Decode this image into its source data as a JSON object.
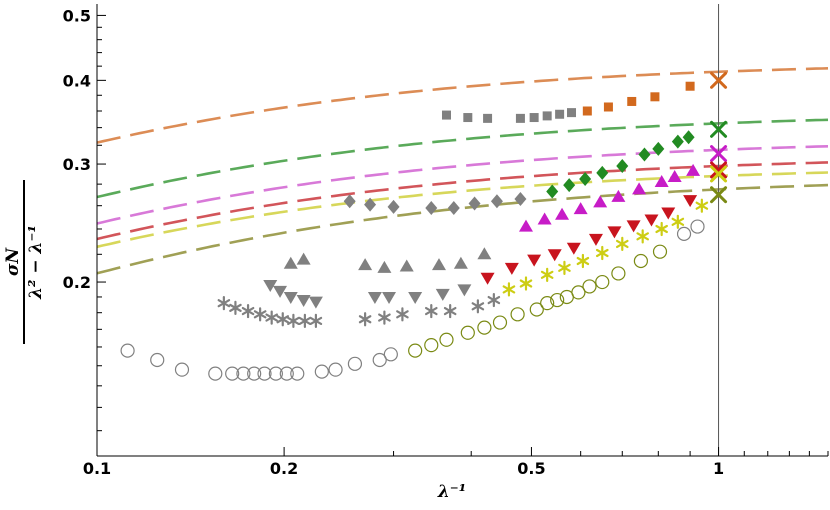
{
  "chart_data": {
    "type": "scatter",
    "xlabel": "λ⁻¹",
    "ylabel_numerator": "σN",
    "ylabel_denominator": "λ² − λ⁻¹",
    "x_scale": "log",
    "y_scale": "log",
    "xlim": [
      0.1,
      1.5
    ],
    "ylim": [
      0.11,
      0.52
    ],
    "x_ticks": [
      {
        "value": 0.1,
        "label": "0.1"
      },
      {
        "value": 0.2,
        "label": "0.2"
      },
      {
        "value": 0.5,
        "label": "0.5"
      },
      {
        "value": 1,
        "label": "1"
      }
    ],
    "y_ticks": [
      {
        "value": 0.2,
        "label": "0.2"
      },
      {
        "value": 0.3,
        "label": "0.3"
      },
      {
        "value": 0.4,
        "label": "0.4"
      },
      {
        "value": 0.5,
        "label": "0.5"
      }
    ],
    "reference_line_x": 1,
    "series": [
      {
        "marker": "square",
        "active_color": "#d2691e",
        "inactive_color": "#808080",
        "fit_color": "#dc8c55",
        "fit": {
          "a": 0.412,
          "b": 0.075
        },
        "points": [
          {
            "x": 0.365,
            "y": 0.355,
            "a": false
          },
          {
            "x": 0.395,
            "y": 0.352,
            "a": false
          },
          {
            "x": 0.425,
            "y": 0.351,
            "a": false
          },
          {
            "x": 0.48,
            "y": 0.351,
            "a": false
          },
          {
            "x": 0.505,
            "y": 0.352,
            "a": false
          },
          {
            "x": 0.53,
            "y": 0.354,
            "a": false
          },
          {
            "x": 0.555,
            "y": 0.356,
            "a": false
          },
          {
            "x": 0.58,
            "y": 0.358,
            "a": false
          },
          {
            "x": 0.615,
            "y": 0.36,
            "a": true
          },
          {
            "x": 0.665,
            "y": 0.365,
            "a": true
          },
          {
            "x": 0.725,
            "y": 0.372,
            "a": true
          },
          {
            "x": 0.79,
            "y": 0.378,
            "a": true
          },
          {
            "x": 0.9,
            "y": 0.392,
            "a": true
          }
        ],
        "endpoint": {
          "x": 1,
          "y": 0.4
        }
      },
      {
        "marker": "diamond",
        "active_color": "#228b22",
        "inactive_color": "#808080",
        "fit_color": "#5aaa5a",
        "fit": {
          "a": 0.345,
          "b": 0.079
        },
        "points": [
          {
            "x": 0.255,
            "y": 0.264,
            "a": false
          },
          {
            "x": 0.275,
            "y": 0.261,
            "a": false
          },
          {
            "x": 0.3,
            "y": 0.259,
            "a": false
          },
          {
            "x": 0.345,
            "y": 0.258,
            "a": false
          },
          {
            "x": 0.375,
            "y": 0.258,
            "a": false
          },
          {
            "x": 0.405,
            "y": 0.262,
            "a": false
          },
          {
            "x": 0.44,
            "y": 0.264,
            "a": false
          },
          {
            "x": 0.48,
            "y": 0.266,
            "a": false
          },
          {
            "x": 0.54,
            "y": 0.273,
            "a": true
          },
          {
            "x": 0.575,
            "y": 0.279,
            "a": true
          },
          {
            "x": 0.61,
            "y": 0.285,
            "a": true
          },
          {
            "x": 0.65,
            "y": 0.291,
            "a": true
          },
          {
            "x": 0.7,
            "y": 0.298,
            "a": true
          },
          {
            "x": 0.76,
            "y": 0.31,
            "a": true
          },
          {
            "x": 0.8,
            "y": 0.316,
            "a": true
          },
          {
            "x": 0.86,
            "y": 0.324,
            "a": true
          },
          {
            "x": 0.895,
            "y": 0.329,
            "a": true
          }
        ],
        "endpoint": {
          "x": 1,
          "y": 0.338
        }
      },
      {
        "marker": "triangle-up",
        "active_color": "#c71cc7",
        "inactive_color": "#808080",
        "fit_color": "#d879d8",
        "fit": {
          "a": 0.315,
          "b": 0.079
        },
        "points": [
          {
            "x": 0.205,
            "y": 0.213,
            "a": false
          },
          {
            "x": 0.215,
            "y": 0.216,
            "a": false
          },
          {
            "x": 0.27,
            "y": 0.212,
            "a": false
          },
          {
            "x": 0.29,
            "y": 0.21,
            "a": false
          },
          {
            "x": 0.315,
            "y": 0.211,
            "a": false
          },
          {
            "x": 0.355,
            "y": 0.212,
            "a": false
          },
          {
            "x": 0.385,
            "y": 0.213,
            "a": false
          },
          {
            "x": 0.42,
            "y": 0.22,
            "a": false
          },
          {
            "x": 0.49,
            "y": 0.242,
            "a": true
          },
          {
            "x": 0.525,
            "y": 0.248,
            "a": true
          },
          {
            "x": 0.56,
            "y": 0.252,
            "a": true
          },
          {
            "x": 0.6,
            "y": 0.257,
            "a": true
          },
          {
            "x": 0.645,
            "y": 0.263,
            "a": true
          },
          {
            "x": 0.69,
            "y": 0.268,
            "a": true
          },
          {
            "x": 0.745,
            "y": 0.275,
            "a": true
          },
          {
            "x": 0.81,
            "y": 0.282,
            "a": true
          },
          {
            "x": 0.85,
            "y": 0.287,
            "a": true
          },
          {
            "x": 0.91,
            "y": 0.293,
            "a": true
          }
        ],
        "endpoint": {
          "x": 1,
          "y": 0.311
        }
      },
      {
        "marker": "triangle-down",
        "active_color": "#c8141e",
        "inactive_color": "#808080",
        "fit_color": "#d2555a",
        "fit": {
          "a": 0.298,
          "b": 0.078
        },
        "points": [
          {
            "x": 0.19,
            "y": 0.198,
            "a": false
          },
          {
            "x": 0.197,
            "y": 0.194,
            "a": false
          },
          {
            "x": 0.205,
            "y": 0.19,
            "a": false
          },
          {
            "x": 0.215,
            "y": 0.188,
            "a": false
          },
          {
            "x": 0.225,
            "y": 0.187,
            "a": false
          },
          {
            "x": 0.28,
            "y": 0.19,
            "a": false
          },
          {
            "x": 0.295,
            "y": 0.19,
            "a": false
          },
          {
            "x": 0.325,
            "y": 0.19,
            "a": false
          },
          {
            "x": 0.36,
            "y": 0.192,
            "a": false
          },
          {
            "x": 0.39,
            "y": 0.195,
            "a": false
          },
          {
            "x": 0.425,
            "y": 0.203,
            "a": true
          },
          {
            "x": 0.465,
            "y": 0.21,
            "a": true
          },
          {
            "x": 0.505,
            "y": 0.216,
            "a": true
          },
          {
            "x": 0.545,
            "y": 0.22,
            "a": true
          },
          {
            "x": 0.585,
            "y": 0.225,
            "a": true
          },
          {
            "x": 0.635,
            "y": 0.232,
            "a": true
          },
          {
            "x": 0.68,
            "y": 0.238,
            "a": true
          },
          {
            "x": 0.73,
            "y": 0.243,
            "a": true
          },
          {
            "x": 0.78,
            "y": 0.248,
            "a": true
          },
          {
            "x": 0.83,
            "y": 0.254,
            "a": true
          },
          {
            "x": 0.9,
            "y": 0.265,
            "a": true
          }
        ],
        "endpoint": {
          "x": 1,
          "y": 0.294
        }
      },
      {
        "marker": "star",
        "active_color": "#cdcd14",
        "inactive_color": "#808080",
        "fit_color": "#d7d75a",
        "fit": {
          "a": 0.288,
          "b": 0.075
        },
        "points": [
          {
            "x": 0.16,
            "y": 0.186,
            "a": false
          },
          {
            "x": 0.167,
            "y": 0.183,
            "a": false
          },
          {
            "x": 0.175,
            "y": 0.181,
            "a": false
          },
          {
            "x": 0.183,
            "y": 0.179,
            "a": false
          },
          {
            "x": 0.191,
            "y": 0.177,
            "a": false
          },
          {
            "x": 0.199,
            "y": 0.176,
            "a": false
          },
          {
            "x": 0.207,
            "y": 0.175,
            "a": false
          },
          {
            "x": 0.216,
            "y": 0.175,
            "a": false
          },
          {
            "x": 0.225,
            "y": 0.175,
            "a": false
          },
          {
            "x": 0.27,
            "y": 0.176,
            "a": false
          },
          {
            "x": 0.29,
            "y": 0.177,
            "a": false
          },
          {
            "x": 0.31,
            "y": 0.179,
            "a": false
          },
          {
            "x": 0.345,
            "y": 0.181,
            "a": false
          },
          {
            "x": 0.37,
            "y": 0.181,
            "a": false
          },
          {
            "x": 0.41,
            "y": 0.184,
            "a": false
          },
          {
            "x": 0.435,
            "y": 0.188,
            "a": false
          },
          {
            "x": 0.46,
            "y": 0.195,
            "a": true
          },
          {
            "x": 0.49,
            "y": 0.199,
            "a": true
          },
          {
            "x": 0.53,
            "y": 0.205,
            "a": true
          },
          {
            "x": 0.565,
            "y": 0.21,
            "a": true
          },
          {
            "x": 0.605,
            "y": 0.215,
            "a": true
          },
          {
            "x": 0.65,
            "y": 0.221,
            "a": true
          },
          {
            "x": 0.7,
            "y": 0.228,
            "a": true
          },
          {
            "x": 0.755,
            "y": 0.234,
            "a": true
          },
          {
            "x": 0.81,
            "y": 0.24,
            "a": true
          },
          {
            "x": 0.86,
            "y": 0.246,
            "a": true
          },
          {
            "x": 0.94,
            "y": 0.26,
            "a": true
          }
        ],
        "endpoint": {
          "x": 1,
          "y": 0.29
        }
      },
      {
        "marker": "circle",
        "active_color": "#7a8a14",
        "inactive_color": "#808080",
        "fit_color": "#a0a055",
        "fit": {
          "a": 0.275,
          "b": 0.095
        },
        "points": [
          {
            "x": 0.112,
            "y": 0.158,
            "a": false
          },
          {
            "x": 0.125,
            "y": 0.153,
            "a": false
          },
          {
            "x": 0.137,
            "y": 0.148,
            "a": false
          },
          {
            "x": 0.155,
            "y": 0.146,
            "a": false
          },
          {
            "x": 0.165,
            "y": 0.146,
            "a": false
          },
          {
            "x": 0.172,
            "y": 0.146,
            "a": false
          },
          {
            "x": 0.179,
            "y": 0.146,
            "a": false
          },
          {
            "x": 0.186,
            "y": 0.146,
            "a": false
          },
          {
            "x": 0.194,
            "y": 0.146,
            "a": false
          },
          {
            "x": 0.202,
            "y": 0.146,
            "a": false
          },
          {
            "x": 0.21,
            "y": 0.146,
            "a": false
          },
          {
            "x": 0.23,
            "y": 0.147,
            "a": false
          },
          {
            "x": 0.242,
            "y": 0.148,
            "a": false
          },
          {
            "x": 0.26,
            "y": 0.151,
            "a": false
          },
          {
            "x": 0.285,
            "y": 0.153,
            "a": false
          },
          {
            "x": 0.297,
            "y": 0.156,
            "a": false
          },
          {
            "x": 0.325,
            "y": 0.158,
            "a": true
          },
          {
            "x": 0.345,
            "y": 0.161,
            "a": true
          },
          {
            "x": 0.365,
            "y": 0.164,
            "a": true
          },
          {
            "x": 0.395,
            "y": 0.168,
            "a": true
          },
          {
            "x": 0.42,
            "y": 0.171,
            "a": true
          },
          {
            "x": 0.445,
            "y": 0.174,
            "a": true
          },
          {
            "x": 0.475,
            "y": 0.179,
            "a": true
          },
          {
            "x": 0.51,
            "y": 0.182,
            "a": true
          },
          {
            "x": 0.53,
            "y": 0.186,
            "a": true
          },
          {
            "x": 0.55,
            "y": 0.188,
            "a": true
          },
          {
            "x": 0.57,
            "y": 0.19,
            "a": true
          },
          {
            "x": 0.595,
            "y": 0.193,
            "a": true
          },
          {
            "x": 0.62,
            "y": 0.197,
            "a": true
          },
          {
            "x": 0.65,
            "y": 0.2,
            "a": true
          },
          {
            "x": 0.69,
            "y": 0.206,
            "a": true
          },
          {
            "x": 0.75,
            "y": 0.215,
            "a": true
          },
          {
            "x": 0.805,
            "y": 0.222,
            "a": true
          },
          {
            "x": 0.88,
            "y": 0.236,
            "a": false
          },
          {
            "x": 0.925,
            "y": 0.242,
            "a": false
          }
        ],
        "endpoint": {
          "x": 1,
          "y": 0.27
        }
      }
    ]
  }
}
